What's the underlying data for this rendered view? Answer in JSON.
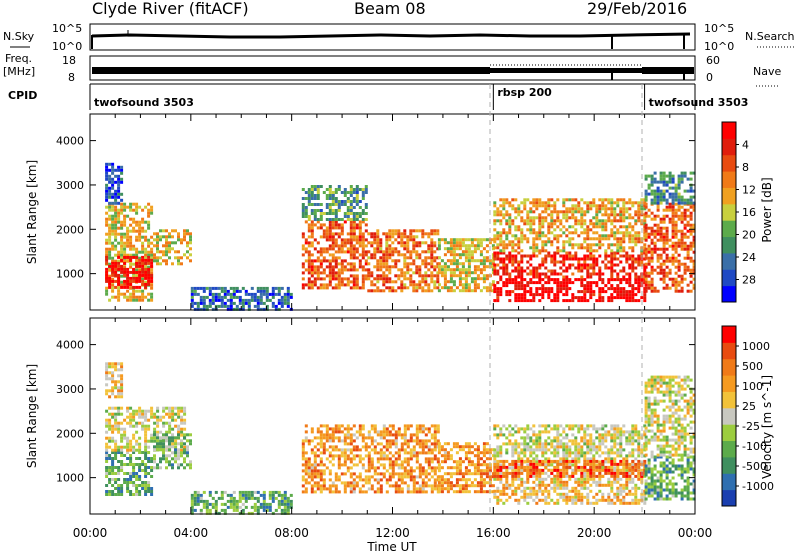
{
  "header": {
    "station": "Clyde River (fitACF)",
    "beam": "Beam 08",
    "date": "29/Feb/2016"
  },
  "strips": {
    "nsky_label": "N.Sky",
    "nsky_ticks": [
      "10^5",
      "10^0"
    ],
    "nsearch_label": "N.Search",
    "freq_label": "Freq.",
    "freq_unit": "[MHz]",
    "freq_ticks": [
      "18",
      "8"
    ],
    "nave_label": "Nave",
    "nave_ticks": [
      "60",
      "0"
    ],
    "cpid_label": "CPID",
    "cpid_segments": [
      {
        "label": "twofsound 3503",
        "start_hr": 0,
        "end_hr": 16
      },
      {
        "label": "rbsp 200",
        "start_hr": 16,
        "end_hr": 22
      },
      {
        "label": "twofsound 3503",
        "start_hr": 22,
        "end_hr": 24
      }
    ]
  },
  "axes": {
    "ylabel": "Slant Range [km]",
    "xlabel": "Time UT",
    "y_ticks": [
      1000,
      2000,
      3000,
      4000
    ],
    "y_tick_labels": [
      "1000",
      "2000",
      "3000",
      "4000"
    ],
    "x_tick_labels": [
      "00:00",
      "04:00",
      "08:00",
      "12:00",
      "16:00",
      "20:00",
      "00:00"
    ]
  },
  "chart_data": [
    {
      "type": "heatmap",
      "title": "",
      "xlabel": "Time UT",
      "ylabel": "Slant Range [km]",
      "xlim": [
        0,
        24
      ],
      "ylim": [
        180,
        4600
      ],
      "colorbar": {
        "label": "Power [dB]",
        "tick_labels": [
          "4",
          "8",
          "12",
          "16",
          "20",
          "24",
          "28"
        ],
        "range": [
          0,
          30
        ],
        "colors": [
          "#0000ff",
          "#1f49c4",
          "#3a6fa8",
          "#3f8f5f",
          "#5cab4b",
          "#c8cf3e",
          "#f0a020",
          "#f07a18",
          "#e84b10",
          "#e01d0c",
          "#ff0000"
        ]
      },
      "regions": [
        {
          "t": [
            0.6,
            2.5
          ],
          "r": [
            400,
            2600
          ],
          "level": 0.55
        },
        {
          "t": [
            0.6,
            2.5
          ],
          "r": [
            700,
            1400
          ],
          "level": 0.95
        },
        {
          "t": [
            0.6,
            1.3
          ],
          "r": [
            2600,
            3500
          ],
          "level": 0.15
        },
        {
          "t": [
            2.5,
            4.0
          ],
          "r": [
            1200,
            2000
          ],
          "level": 0.55
        },
        {
          "t": [
            4.0,
            8.0
          ],
          "r": [
            200,
            700
          ],
          "level": 0.2
        },
        {
          "t": [
            8.4,
            11.0
          ],
          "r": [
            700,
            2200
          ],
          "level": 0.75
        },
        {
          "t": [
            8.4,
            11.0
          ],
          "r": [
            2200,
            3000
          ],
          "level": 0.35
        },
        {
          "t": [
            11.0,
            13.8
          ],
          "r": [
            600,
            2000
          ],
          "level": 0.7
        },
        {
          "t": [
            13.8,
            16.0
          ],
          "r": [
            600,
            1800
          ],
          "level": 0.55
        },
        {
          "t": [
            16.0,
            22.0
          ],
          "r": [
            400,
            900
          ],
          "level": 0.98
        },
        {
          "t": [
            16.0,
            22.0
          ],
          "r": [
            900,
            1500
          ],
          "level": 0.85
        },
        {
          "t": [
            16.0,
            22.0
          ],
          "r": [
            1500,
            2700
          ],
          "level": 0.6
        },
        {
          "t": [
            22.0,
            24.0
          ],
          "r": [
            600,
            2600
          ],
          "level": 0.75
        },
        {
          "t": [
            22.0,
            24.0
          ],
          "r": [
            2600,
            3300
          ],
          "level": 0.3
        }
      ]
    },
    {
      "type": "heatmap",
      "title": "",
      "xlabel": "Time UT",
      "ylabel": "Slant Range [km]",
      "xlim": [
        0,
        24
      ],
      "ylim": [
        180,
        4600
      ],
      "colorbar": {
        "label": "Velocity [m s^-1]",
        "tick_labels": [
          "1000",
          "500",
          "100",
          "25",
          "-25",
          "-100",
          "-500",
          "-1000"
        ],
        "range": [
          -1000,
          1000
        ],
        "colors": [
          "#1a3fb0",
          "#2f6fb0",
          "#3f8f5f",
          "#5cab4b",
          "#9ccd3f",
          "#c8c8c0",
          "#f2c23a",
          "#f59a20",
          "#f07a18",
          "#e84b10",
          "#ff0000"
        ]
      },
      "regions": [
        {
          "t": [
            0.6,
            2.5
          ],
          "r": [
            600,
            1600
          ],
          "level": 0.3
        },
        {
          "t": [
            0.6,
            3.8
          ],
          "r": [
            1600,
            2600
          ],
          "level": 0.5
        },
        {
          "t": [
            0.6,
            1.2
          ],
          "r": [
            2800,
            3600
          ],
          "level": 0.6
        },
        {
          "t": [
            2.5,
            4.0
          ],
          "r": [
            1200,
            2000
          ],
          "level": 0.35
        },
        {
          "t": [
            4.0,
            8.0
          ],
          "r": [
            200,
            700
          ],
          "level": 0.3
        },
        {
          "t": [
            8.4,
            13.8
          ],
          "r": [
            700,
            2200
          ],
          "level": 0.7
        },
        {
          "t": [
            13.8,
            16.0
          ],
          "r": [
            700,
            1800
          ],
          "level": 0.72
        },
        {
          "t": [
            16.0,
            22.0
          ],
          "r": [
            400,
            1200
          ],
          "level": 0.6
        },
        {
          "t": [
            16.0,
            22.0
          ],
          "r": [
            1200,
            2200
          ],
          "level": 0.5
        },
        {
          "t": [
            16.0,
            22.0
          ],
          "r": [
            1000,
            1400
          ],
          "level": 0.8
        },
        {
          "t": [
            22.0,
            24.0
          ],
          "r": [
            500,
            1500
          ],
          "level": 0.3
        },
        {
          "t": [
            22.0,
            24.0
          ],
          "r": [
            1500,
            3300
          ],
          "level": 0.5
        }
      ]
    }
  ]
}
